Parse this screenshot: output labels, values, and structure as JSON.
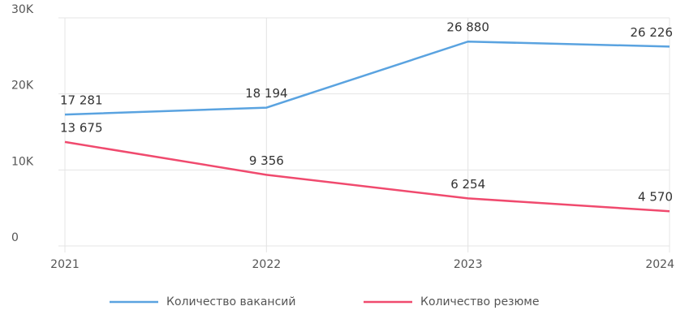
{
  "chart_data": {
    "type": "line",
    "categories": [
      "2021",
      "2022",
      "2023",
      "2024"
    ],
    "ylim": [
      0,
      30000
    ],
    "yticks": [
      0,
      {
        "value": 10000,
        "label": "10K"
      },
      {
        "value": 20000,
        "label": "20K"
      },
      {
        "value": 30000,
        "label": "30K"
      }
    ],
    "grid": true,
    "legend": "bottom",
    "series": [
      {
        "name": "Количество вакансий",
        "color": "#5aa3e0",
        "values": [
          17281,
          18194,
          26880,
          26226
        ],
        "value_labels": [
          "17 281",
          "18 194",
          "26 880",
          "26 226"
        ]
      },
      {
        "name": "Количество резюме",
        "color": "#f04a6e",
        "values": [
          13675,
          9356,
          6254,
          4570
        ],
        "value_labels": [
          "13 675",
          "9 356",
          "6 254",
          "4 570"
        ]
      }
    ]
  }
}
